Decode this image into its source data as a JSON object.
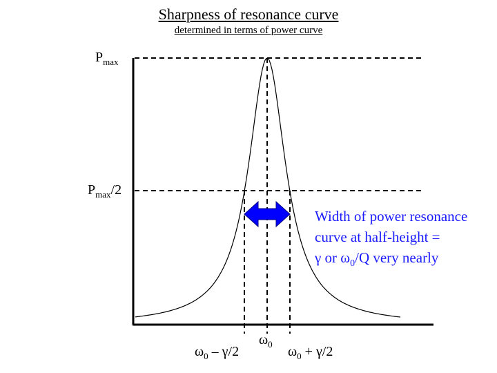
{
  "title": "Sharpness of resonance curve",
  "subtitle": "determined in terms of power curve",
  "labels": {
    "pmax": {
      "base": "P",
      "sub": "max"
    },
    "phalf": {
      "base": "P",
      "sub": "max",
      "suffix": "/2"
    },
    "omega0": {
      "base": "ω",
      "sub": "0"
    },
    "omega_minus": {
      "base": "ω",
      "sub": "0",
      "suffix": " – γ/2"
    },
    "omega_plus": {
      "base": "ω",
      "sub": "0",
      "suffix": " + γ/2"
    }
  },
  "annotation": {
    "line1": "Width of power resonance",
    "line2": "curve at half-height =",
    "line3_pre": "γ or ω",
    "line3_sub": "0",
    "line3_post": "/Q very nearly"
  },
  "colors": {
    "arrow": "#0000ff",
    "annotation_text": "#1a1aff",
    "curve": "#000000"
  },
  "curve": {
    "shape": "lorentzian",
    "omega0_rel": 1.0,
    "half_width_rel": 0.09
  }
}
